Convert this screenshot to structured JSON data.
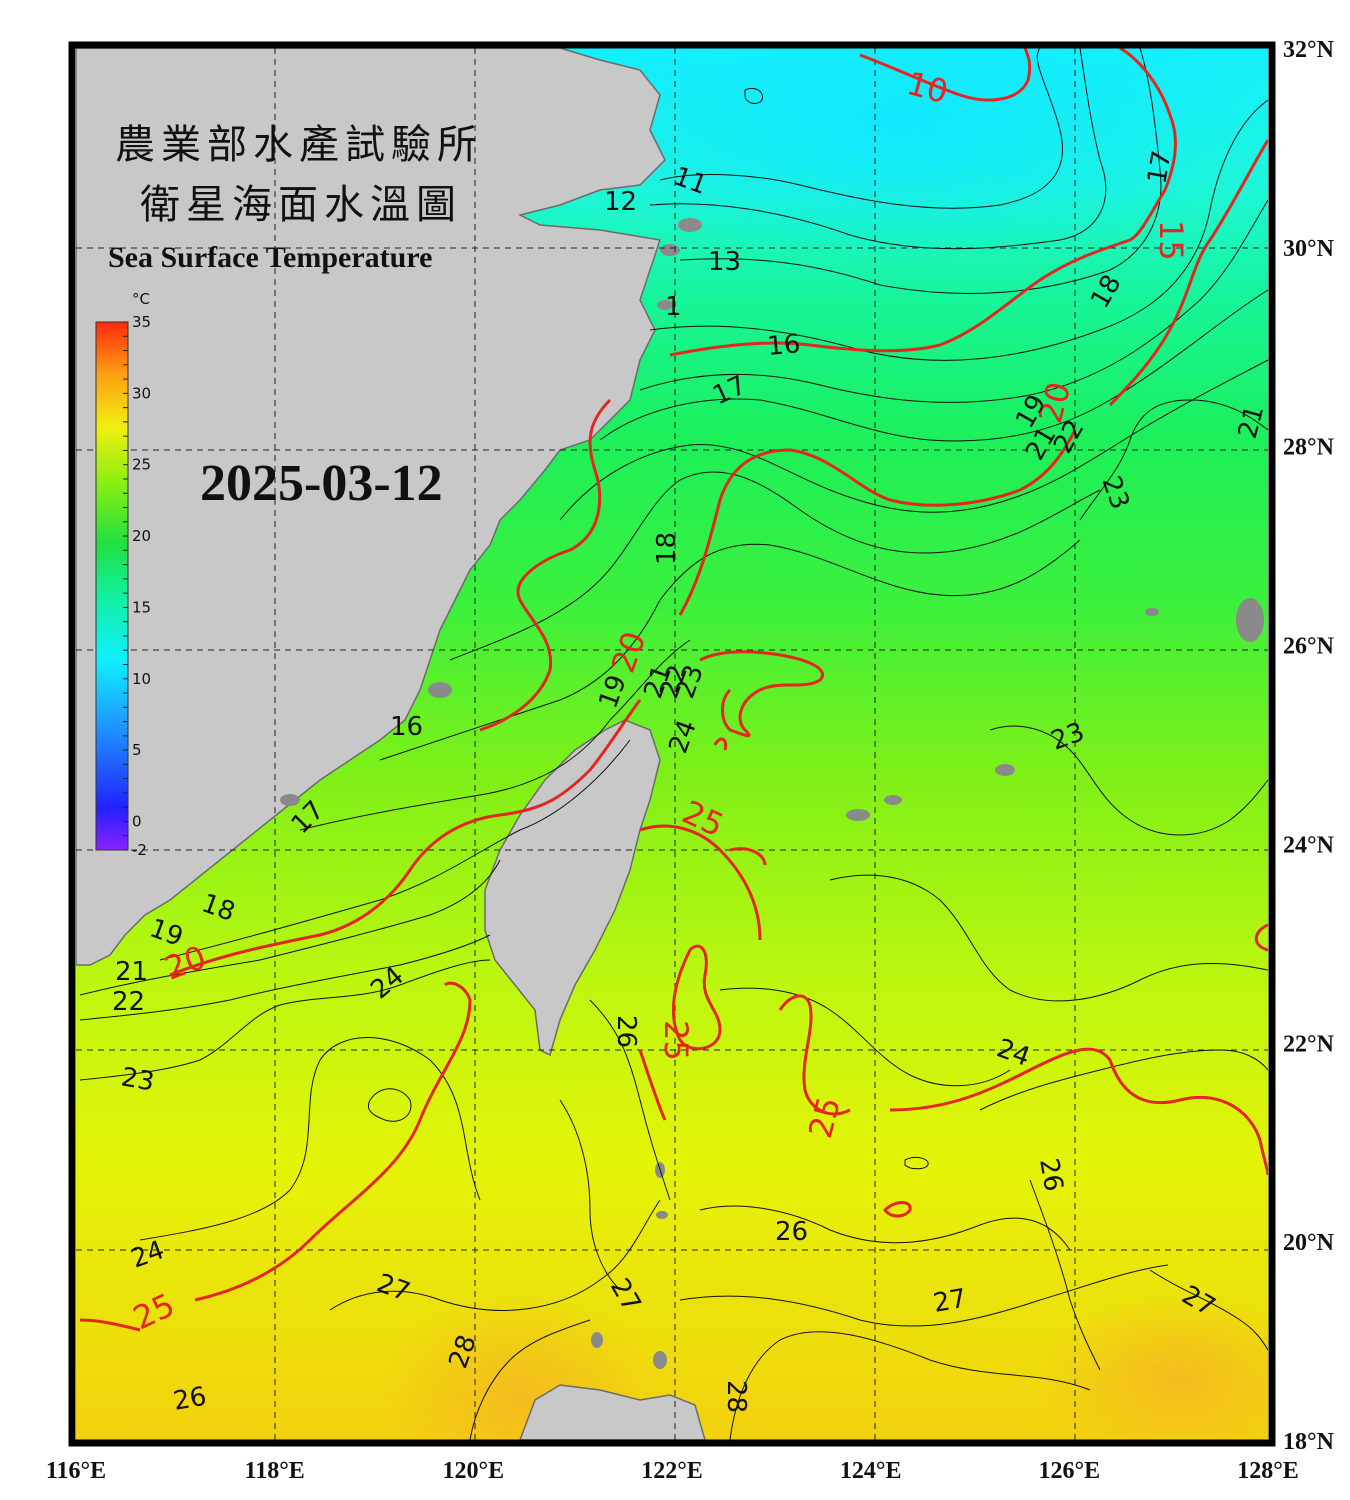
{
  "title": {
    "line1": "農業部水產試驗所",
    "line2": "衛星海面水溫圖",
    "english": "Sea Surface Temperature"
  },
  "date": "2025-03-12",
  "colorbar": {
    "unit": "°C",
    "ticks": [
      "35",
      "30",
      "25",
      "20",
      "15",
      "10",
      "5",
      "0",
      "-2"
    ]
  },
  "axes": {
    "lon_labels": [
      "116°E",
      "118°E",
      "120°E",
      "122°E",
      "124°E",
      "126°E",
      "128°E"
    ],
    "lat_labels": [
      "32°N",
      "30°N",
      "28°N",
      "26°N",
      "24°N",
      "22°N",
      "20°N",
      "18°N"
    ]
  },
  "isotherm_labels": {
    "black": [
      "11",
      "12",
      "13",
      "1",
      "16",
      "17",
      "18",
      "19",
      "21",
      "22",
      "23",
      "24",
      "26",
      "27",
      "28",
      "17",
      "18",
      "19",
      "21",
      "22",
      "23",
      "24",
      "23",
      "24",
      "26",
      "27",
      "26",
      "27",
      "23",
      "24",
      "26",
      "23"
    ],
    "red": [
      "10",
      "15",
      "20",
      "25",
      "20",
      "25",
      "25",
      "25",
      "20",
      "25"
    ]
  },
  "colors": {
    "land": "#c8c8c8",
    "frame": "#000000",
    "isotherm_major": "#e3261f",
    "isotherm_minor": "#111111"
  }
}
